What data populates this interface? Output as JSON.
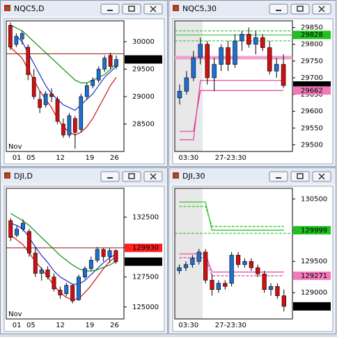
{
  "chart_data": [
    {
      "type": "candlestick",
      "title": "NQC5,D",
      "ylim": [
        28000,
        30380
      ],
      "yticks": [
        30000,
        29500,
        29000,
        28500
      ],
      "x_labels": [
        "01",
        "05",
        "12",
        "19",
        "26"
      ],
      "month_label": "Nov",
      "up_color": "#1f6fd1",
      "down_color": "#d01010",
      "candles": [
        [
          30300,
          30350,
          29850,
          29900
        ],
        [
          29950,
          30150,
          29900,
          30100
        ],
        [
          30050,
          30200,
          29950,
          30150
        ],
        [
          29900,
          29950,
          29300,
          29400
        ],
        [
          29350,
          29500,
          28950,
          29000
        ],
        [
          28950,
          29100,
          28700,
          28800
        ],
        [
          28850,
          29100,
          28800,
          29050
        ],
        [
          29050,
          29150,
          28900,
          29000
        ],
        [
          28950,
          29000,
          28500,
          28550
        ],
        [
          28500,
          28600,
          28250,
          28300
        ],
        [
          28300,
          28700,
          28250,
          28650
        ],
        [
          28600,
          28650,
          28050,
          28350
        ],
        [
          28400,
          29050,
          28350,
          29000
        ],
        [
          29000,
          29250,
          28950,
          29200
        ],
        [
          29200,
          29350,
          29150,
          29300
        ],
        [
          29300,
          29550,
          29250,
          29500
        ],
        [
          29500,
          29750,
          29450,
          29700
        ],
        [
          29750,
          29800,
          29500,
          29550
        ],
        [
          29550,
          29750,
          29500,
          29677
        ]
      ],
      "lines": [
        {
          "color": "#1a2fd0",
          "values": [
            null,
            30100,
            30000,
            29800,
            29600,
            29400,
            29200,
            29050,
            28950,
            28850,
            28800,
            28750,
            28850,
            28950,
            29050,
            29200,
            29350,
            29450,
            29550
          ]
        },
        {
          "color": "#138a13",
          "values": [
            30300,
            30250,
            30200,
            30100,
            30000,
            29900,
            29800,
            29700,
            29600,
            29500,
            29400,
            29300,
            29250,
            29250,
            29300,
            29350,
            29400,
            29500,
            29600
          ]
        },
        {
          "color": "#d01010",
          "values": [
            29900,
            29800,
            29700,
            29500,
            29300,
            29100,
            28950,
            28800,
            28600,
            28450,
            28350,
            28300,
            28350,
            28450,
            28600,
            28800,
            29000,
            29200,
            29350
          ]
        }
      ],
      "levels": [
        {
          "value": 29780,
          "color": "#8b1a1a",
          "width": 1
        }
      ],
      "price_labels": [
        {
          "value": 29677,
          "bg": "#000000",
          "fg": "#ffffff"
        }
      ]
    },
    {
      "type": "candlestick",
      "title": "NQC5,30",
      "ylim": [
        29480,
        29870
      ],
      "yticks": [
        29850,
        29800,
        29750,
        29700,
        29650,
        29600,
        29550,
        29500
      ],
      "x_labels": [
        "03:30",
        "27-23:30"
      ],
      "up_color": "#1f6fd1",
      "down_color": "#d01010",
      "candles": [
        [
          29640,
          29680,
          29620,
          29660
        ],
        [
          29660,
          29720,
          29650,
          29700
        ],
        [
          29700,
          29780,
          29690,
          29760
        ],
        [
          29760,
          29820,
          29740,
          29800
        ],
        [
          29800,
          29810,
          29680,
          29700
        ],
        [
          29700,
          29760,
          29660,
          29740
        ],
        [
          29740,
          29800,
          29720,
          29790
        ],
        [
          29790,
          29810,
          29720,
          29740
        ],
        [
          29740,
          29830,
          29730,
          29810
        ],
        [
          29810,
          29840,
          29780,
          29830
        ],
        [
          29830,
          29850,
          29790,
          29800
        ],
        [
          29800,
          29840,
          29770,
          29820
        ],
        [
          29820,
          29830,
          29780,
          29790
        ],
        [
          29790,
          29810,
          29710,
          29720
        ],
        [
          29720,
          29760,
          29700,
          29740
        ],
        [
          29740,
          29770,
          29670,
          29677
        ]
      ],
      "lines": [
        {
          "color": "#e0409a",
          "values": [
            29540,
            29540,
            29540,
            29662,
            29662,
            29662,
            29662,
            29662,
            29662,
            29662,
            29662,
            29662,
            29662,
            29662,
            29662,
            29662
          ]
        },
        {
          "color": "#e0409a",
          "values": [
            29515,
            29515,
            29515,
            29692,
            29692,
            29692,
            29692,
            29692,
            29692,
            29692,
            29692,
            29692,
            29692,
            29692,
            29692,
            29692
          ]
        }
      ],
      "levels": [
        {
          "value": 29840,
          "color": "#20c020",
          "width": 1,
          "dash": true
        },
        {
          "value": 29828,
          "color": "#20c020",
          "width": 1
        },
        {
          "value": 29810,
          "color": "#20c020",
          "width": 1,
          "dash": true
        },
        {
          "value": 29760,
          "color": "#f0a0cc",
          "width": 5
        }
      ],
      "price_labels": [
        {
          "value": 29828,
          "bg": "#20c020",
          "fg": "#000000"
        },
        {
          "value": 29677,
          "bg": "#000000",
          "fg": "#ffffff"
        },
        {
          "value": 29662,
          "bg": "#f07ab8",
          "fg": "#000000"
        }
      ]
    },
    {
      "type": "candlestick",
      "title": "DJI,D",
      "ylim": [
        124000,
        134900
      ],
      "yticks": [
        132500,
        130000,
        127500,
        125000
      ],
      "x_labels": [
        "01",
        "05",
        "12",
        "19",
        "26"
      ],
      "month_label": "Nov",
      "up_color": "#1f6fd1",
      "down_color": "#d01010",
      "candles": [
        [
          132200,
          132400,
          130500,
          130800
        ],
        [
          131000,
          131800,
          130800,
          131500
        ],
        [
          131500,
          132300,
          131300,
          132000
        ],
        [
          131300,
          131500,
          129200,
          129500
        ],
        [
          129500,
          130000,
          127500,
          127800
        ],
        [
          127800,
          128300,
          127200,
          128100
        ],
        [
          128100,
          128400,
          127300,
          127500
        ],
        [
          127500,
          127800,
          126300,
          126500
        ],
        [
          126400,
          126700,
          125700,
          126000
        ],
        [
          126100,
          127000,
          125900,
          126800
        ],
        [
          126800,
          126900,
          125300,
          125500
        ],
        [
          125600,
          127700,
          125500,
          127500
        ],
        [
          127500,
          128400,
          127300,
          128200
        ],
        [
          128200,
          129200,
          128000,
          128900
        ],
        [
          128900,
          130000,
          128700,
          129800
        ],
        [
          129800,
          129900,
          128800,
          129200
        ],
        [
          129200,
          129900,
          128700,
          129700
        ],
        [
          129700,
          129800,
          128600,
          128781
        ]
      ],
      "lines": [
        {
          "color": "#1a2fd0",
          "values": [
            132000,
            131800,
            131500,
            130800,
            130000,
            129300,
            128700,
            128000,
            127500,
            127200,
            126900,
            126900,
            127200,
            127700,
            128200,
            128700,
            129100,
            129400
          ]
        },
        {
          "color": "#138a13",
          "values": [
            132800,
            132500,
            132200,
            131800,
            131300,
            130800,
            130300,
            129800,
            129300,
            128900,
            128500,
            128200,
            128000,
            128000,
            128100,
            128300,
            128500,
            128800
          ]
        },
        {
          "color": "#d01010",
          "values": [
            131000,
            130600,
            130200,
            129500,
            128800,
            128200,
            127500,
            126800,
            126200,
            125800,
            125600,
            125700,
            126200,
            126800,
            127500,
            128200,
            128800,
            129200
          ]
        }
      ],
      "levels": [
        {
          "value": 129930,
          "color": "#8b1a1a",
          "width": 1
        }
      ],
      "price_labels": [
        {
          "value": 129930,
          "bg": "#ff2020",
          "fg": "#000000"
        },
        {
          "value": 128781,
          "bg": "#000000",
          "fg": "#ffffff"
        }
      ]
    },
    {
      "type": "candlestick",
      "title": "DJI,30",
      "ylim": [
        128580,
        130670
      ],
      "yticks": [
        130500,
        130000,
        129500,
        129000
      ],
      "x_labels": [
        "03:30",
        "27-23:30"
      ],
      "up_color": "#1f6fd1",
      "down_color": "#d01010",
      "candles": [
        [
          129350,
          129450,
          129300,
          129400
        ],
        [
          129400,
          129500,
          129350,
          129450
        ],
        [
          129450,
          129600,
          129400,
          129550
        ],
        [
          129500,
          129700,
          129450,
          129650
        ],
        [
          129650,
          129700,
          129150,
          129200
        ],
        [
          129200,
          129300,
          128950,
          129050
        ],
        [
          129050,
          129200,
          129000,
          129150
        ],
        [
          129150,
          129200,
          129050,
          129100
        ],
        [
          129150,
          129650,
          129100,
          129600
        ],
        [
          129600,
          129650,
          129400,
          129450
        ],
        [
          129450,
          129550,
          129400,
          129500
        ],
        [
          129500,
          129550,
          129350,
          129400
        ],
        [
          129400,
          129450,
          129250,
          129300
        ],
        [
          129300,
          129350,
          129000,
          129050
        ],
        [
          129050,
          129150,
          128950,
          129100
        ],
        [
          129100,
          129150,
          128900,
          128950
        ],
        [
          128950,
          129050,
          128700,
          128781
        ]
      ],
      "lines": [
        {
          "color": "#20c020",
          "values": [
            130450,
            130450,
            130450,
            130450,
            130450,
            130000,
            130000,
            130000,
            130000,
            130000,
            130000,
            130000,
            130000,
            130000,
            130000,
            130000,
            130000
          ]
        },
        {
          "color": "#20c020",
          "dash": true,
          "values": [
            130380,
            130380,
            130380,
            130380,
            130380,
            130060,
            130060,
            130060,
            130060,
            130060,
            130060,
            130060,
            130060,
            130060,
            130060,
            130060,
            130060
          ]
        },
        {
          "color": "#e0409a",
          "values": [
            129620,
            129620,
            129620,
            129620,
            129620,
            129330,
            129330,
            129330,
            129330,
            129330,
            129330,
            129330,
            129330,
            129330,
            129330,
            129330,
            129330
          ]
        },
        {
          "color": "#e0409a",
          "dash": true,
          "values": [
            129560,
            129560,
            129560,
            129560,
            129560,
            129271,
            129271,
            129271,
            129271,
            129271,
            129271,
            129271,
            129271,
            129271,
            129271,
            129271,
            129271
          ]
        }
      ],
      "levels": [
        {
          "value": 129950,
          "color": "#20c020",
          "width": 1,
          "dash": true
        }
      ],
      "price_labels": [
        {
          "value": 129999,
          "bg": "#20c020",
          "fg": "#000000"
        },
        {
          "value": 129271,
          "bg": "#f07ab8",
          "fg": "#000000"
        },
        {
          "value": 128781,
          "bg": "#000000",
          "fg": "#ffffff"
        }
      ]
    }
  ]
}
